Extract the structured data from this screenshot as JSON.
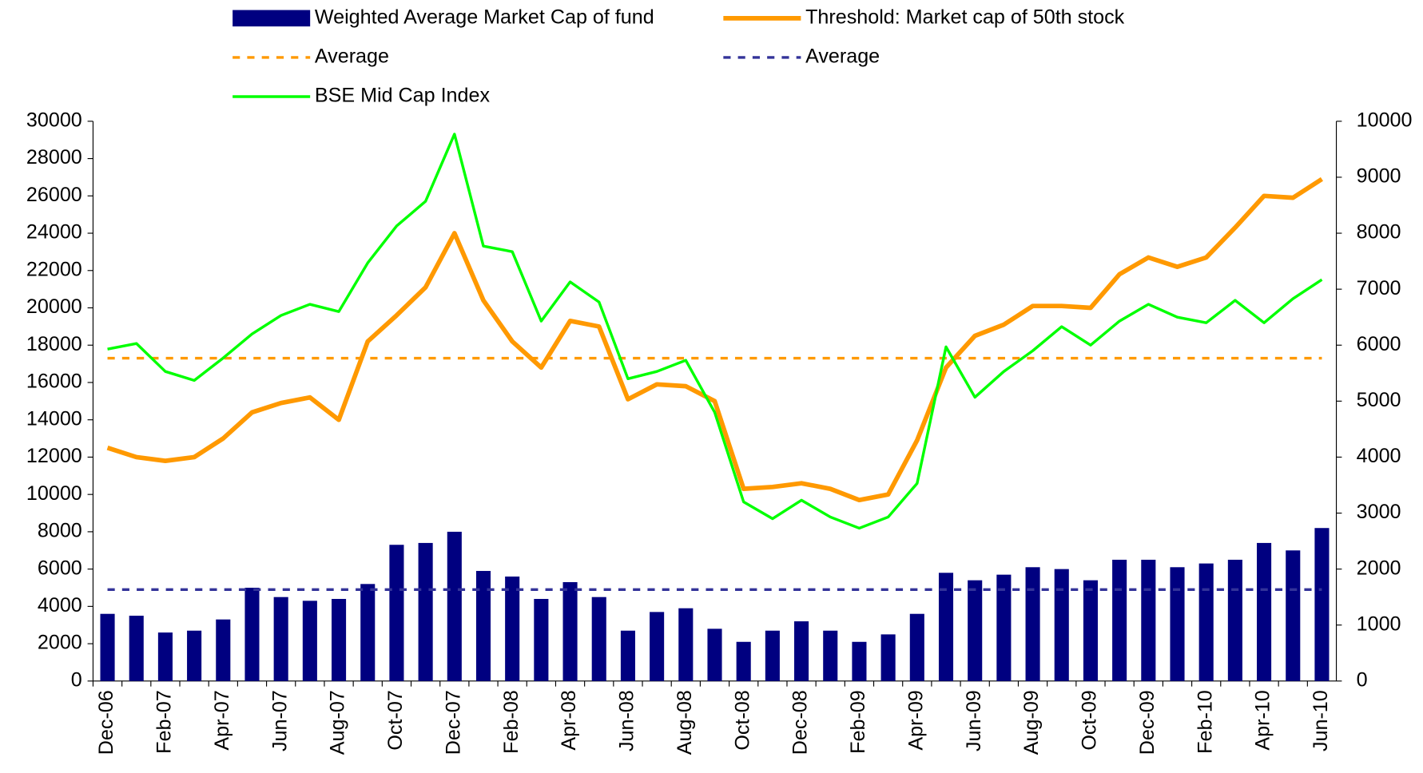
{
  "chart_data": {
    "type": "bar-line",
    "categories": [
      "Dec-06",
      null,
      "Feb-07",
      null,
      "Apr-07",
      null,
      "Jun-07",
      null,
      "Aug-07",
      null,
      "Oct-07",
      null,
      "Dec-07",
      null,
      "Feb-08",
      null,
      "Apr-08",
      null,
      "Jun-08",
      null,
      "Aug-08",
      null,
      "Oct-08",
      null,
      "Dec-08",
      null,
      "Feb-09",
      null,
      "Apr-09",
      null,
      "Jun-09",
      null,
      "Aug-09",
      null,
      "Oct-09",
      null,
      "Dec-09",
      null,
      "Feb-10",
      null,
      "Apr-10",
      null,
      "Jun-10"
    ],
    "series": [
      {
        "name": "Weighted Average Market Cap of fund",
        "type": "bar",
        "color": "#000080",
        "values": [
          3600,
          3500,
          2600,
          2700,
          3300,
          5000,
          4500,
          4300,
          4400,
          5200,
          7300,
          7400,
          8000,
          5900,
          5600,
          4400,
          5300,
          4500,
          2700,
          3700,
          3900,
          2800,
          2100,
          2700,
          3200,
          2700,
          2100,
          2500,
          3600,
          5800,
          5400,
          5700,
          6100,
          6000,
          5400,
          6500,
          6500,
          6100,
          6300,
          6500,
          7400,
          7000,
          8200
        ]
      },
      {
        "name": "Threshold: Market cap of 50th stock",
        "type": "line",
        "color": "#ff9900",
        "values": [
          12500,
          12000,
          11800,
          12000,
          13000,
          14400,
          14900,
          15200,
          14000,
          18200,
          19600,
          21100,
          24000,
          20400,
          18200,
          16800,
          19300,
          19000,
          15100,
          15900,
          15800,
          15000,
          10300,
          10400,
          10600,
          10300,
          9700,
          10000,
          12900,
          16800,
          18500,
          19100,
          20100,
          20100,
          20000,
          21800,
          22700,
          22200,
          22700,
          24300,
          26000,
          25900,
          26900
        ]
      },
      {
        "name": "Average",
        "type": "hline",
        "color": "#ff9900",
        "value": 17300
      },
      {
        "name": "Average",
        "type": "hline",
        "color": "#333399",
        "value": 4900
      },
      {
        "name": "BSE Mid Cap Index",
        "type": "line",
        "color": "#00ff00",
        "axis": "y2",
        "values": [
          5930,
          6030,
          5530,
          5370,
          5770,
          6200,
          6530,
          6730,
          6600,
          7470,
          8130,
          8570,
          9770,
          7770,
          7670,
          6430,
          7130,
          6770,
          5400,
          5530,
          5730,
          4800,
          3200,
          2900,
          3230,
          2930,
          2730,
          2930,
          3530,
          5970,
          5070,
          5530,
          5900,
          6330,
          6000,
          6430,
          6730,
          6500,
          6400,
          6800,
          6400,
          6830,
          7170
        ]
      }
    ],
    "ylim": [
      0,
      30000
    ],
    "yticks": [
      0,
      2000,
      4000,
      6000,
      8000,
      10000,
      12000,
      14000,
      16000,
      18000,
      20000,
      22000,
      24000,
      26000,
      28000,
      30000
    ],
    "y2lim": [
      0,
      10000
    ],
    "y2ticks": [
      0,
      1000,
      2000,
      3000,
      4000,
      5000,
      6000,
      7000,
      8000,
      9000,
      10000
    ],
    "grid": false
  }
}
